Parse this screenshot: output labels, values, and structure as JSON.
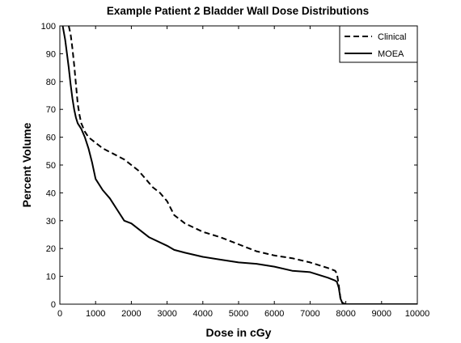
{
  "chart_data": {
    "type": "line",
    "title": "Example Patient 2 Bladder Wall Dose Distributions",
    "xlabel": "Dose in cGy",
    "ylabel": "Percent Volume",
    "xlim": [
      0,
      10000
    ],
    "ylim": [
      0,
      100
    ],
    "xticks": [
      0,
      1000,
      2000,
      3000,
      4000,
      5000,
      6000,
      7000,
      8000,
      9000,
      10000
    ],
    "yticks": [
      0,
      10,
      20,
      30,
      40,
      50,
      60,
      70,
      80,
      90,
      100
    ],
    "grid": false,
    "legend_position": "top-right",
    "series": [
      {
        "name": "Clinical",
        "style": "dashed",
        "color": "#000000",
        "x": [
          250,
          300,
          350,
          400,
          450,
          500,
          550,
          600,
          700,
          800,
          1000,
          1200,
          1500,
          1800,
          2000,
          2200,
          2400,
          2600,
          2800,
          3000,
          3200,
          3500,
          4000,
          4500,
          5000,
          5500,
          6000,
          6500,
          7000,
          7500,
          7700,
          7750,
          7800,
          7850,
          7900,
          8000,
          10000
        ],
        "y": [
          100,
          97,
          92,
          86,
          79,
          72,
          68,
          65,
          62,
          60,
          58,
          56,
          54,
          52,
          50,
          48,
          45,
          42,
          40,
          37,
          32,
          29,
          26,
          24,
          21.5,
          19,
          17.5,
          16.5,
          15,
          13,
          12,
          11,
          7,
          2,
          0.5,
          0,
          0
        ]
      },
      {
        "name": "MOEA",
        "style": "solid",
        "color": "#000000",
        "x": [
          80,
          150,
          200,
          250,
          300,
          350,
          400,
          450,
          500,
          600,
          700,
          800,
          900,
          1000,
          1200,
          1400,
          1600,
          1800,
          2000,
          2500,
          3000,
          3200,
          3500,
          4000,
          4500,
          5000,
          5500,
          6000,
          6500,
          7000,
          7500,
          7700,
          7750,
          7800,
          7850,
          7900,
          8000,
          10000
        ],
        "y": [
          100,
          95,
          90,
          85,
          79,
          74,
          70,
          67,
          65,
          63,
          60,
          56,
          51,
          45,
          41,
          38,
          34,
          30,
          29,
          24,
          21,
          19.5,
          18.5,
          17,
          16,
          15,
          14.5,
          13.5,
          12,
          11.5,
          9.5,
          8.5,
          8,
          6,
          2,
          0.5,
          0,
          0
        ]
      }
    ]
  }
}
